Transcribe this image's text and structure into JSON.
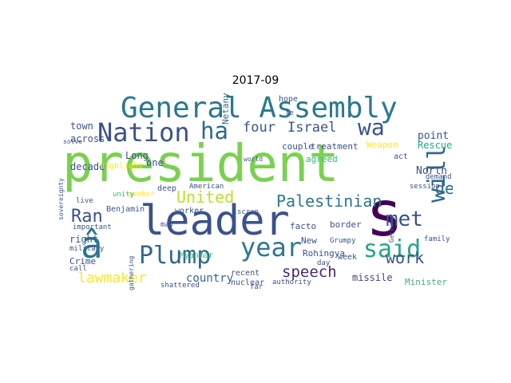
{
  "figure": {
    "title": "2017-09"
  },
  "words": [
    {
      "text": "president",
      "color": "#7ad151"
    },
    {
      "text": "leader",
      "color": "#3b528b"
    },
    {
      "text": "s",
      "color": "#440154"
    },
    {
      "text": "General Assembly",
      "color": "#2a788e"
    },
    {
      "text": "Nation",
      "color": "#3b528b"
    },
    {
      "text": "ha",
      "color": "#31688e"
    },
    {
      "text": "year",
      "color": "#2a788e"
    },
    {
      "text": "said",
      "color": "#22a884"
    },
    {
      "text": "Plump",
      "color": "#31688e"
    },
    {
      "text": "â",
      "color": "#2a788e"
    },
    {
      "text": "will",
      "color": "#31688e"
    },
    {
      "text": "met",
      "color": "#3b528b"
    },
    {
      "text": "wa",
      "color": "#3b528b"
    },
    {
      "text": "Ran",
      "color": "#3b528b"
    },
    {
      "text": "Palestinian",
      "color": "#2a788e"
    },
    {
      "text": "United",
      "color": "#bddf26"
    },
    {
      "text": "four",
      "color": "#3b528b"
    },
    {
      "text": "Israel",
      "color": "#3b528b"
    },
    {
      "text": "speech",
      "color": "#482878"
    },
    {
      "text": "work",
      "color": "#3b528b"
    },
    {
      "text": "lawmaker",
      "color": "#fde725"
    },
    {
      "text": "de",
      "color": "#31688e"
    },
    {
      "text": "country",
      "color": "#31688e"
    },
    {
      "text": "missile",
      "color": "#414487"
    },
    {
      "text": "Minister",
      "color": "#35b779"
    },
    {
      "text": "North",
      "color": "#3b528b"
    },
    {
      "text": "Rescue",
      "color": "#22a884"
    },
    {
      "text": "point",
      "color": "#3b528b"
    },
    {
      "text": "treatment",
      "color": "#3b528b"
    },
    {
      "text": "couple",
      "color": "#3b528b"
    },
    {
      "text": "Weapon",
      "color": "#fde725"
    },
    {
      "text": "town",
      "color": "#3b528b"
    },
    {
      "text": "across",
      "color": "#3b528b"
    },
    {
      "text": "decade",
      "color": "#3b528b"
    },
    {
      "text": "Long",
      "color": "#3b528b"
    },
    {
      "text": "one",
      "color": "#3b528b"
    },
    {
      "text": "right",
      "color": "#3b528b"
    },
    {
      "text": "Crime",
      "color": "#3b528b"
    },
    {
      "text": "Benjamin",
      "color": "#3b528b"
    },
    {
      "text": "Netanyahu",
      "color": "#31688e"
    },
    {
      "text": "New",
      "color": "#3b528b"
    },
    {
      "text": "Rohingya",
      "color": "#3b528b"
    },
    {
      "text": "facto",
      "color": "#3b528b"
    },
    {
      "text": "Myanmar",
      "color": "#35b779"
    },
    {
      "text": "recent",
      "color": "#3b528b"
    },
    {
      "text": "nuclear",
      "color": "#3b528b"
    },
    {
      "text": "border",
      "color": "#3b528b"
    },
    {
      "text": "week",
      "color": "#3b528b"
    },
    {
      "text": "agreed",
      "color": "#35b779"
    },
    {
      "text": "hope",
      "color": "#3b528b"
    },
    {
      "text": "act",
      "color": "#3b528b"
    },
    {
      "text": "worker",
      "color": "#3b528b"
    },
    {
      "text": "deep",
      "color": "#3b528b"
    },
    {
      "text": "American",
      "color": "#3b528b"
    },
    {
      "text": "military",
      "color": "#3b528b"
    },
    {
      "text": "important",
      "color": "#3b528b"
    },
    {
      "text": "live",
      "color": "#3b528b"
    },
    {
      "text": "call",
      "color": "#3b528b"
    },
    {
      "text": "shattered",
      "color": "#3b528b"
    },
    {
      "text": "authority",
      "color": "#3b528b"
    },
    {
      "text": "far",
      "color": "#3b528b"
    },
    {
      "text": "Grumpy",
      "color": "#3b528b"
    },
    {
      "text": "scrap",
      "color": "#3b528b"
    },
    {
      "text": "demand",
      "color": "#3b528b"
    },
    {
      "text": "session",
      "color": "#3b528b"
    },
    {
      "text": "family",
      "color": "#3b528b"
    },
    {
      "text": "Germany",
      "color": "#3b528b"
    },
    {
      "text": "le",
      "color": "#3b528b"
    },
    {
      "text": "may",
      "color": "#3b528b"
    },
    {
      "text": "member",
      "color": "#fde725"
    },
    {
      "text": "unity",
      "color": "#35b779"
    },
    {
      "text": "sovereignty",
      "color": "#3b528b"
    },
    {
      "text": "world",
      "color": "#3b528b"
    },
    {
      "text": "day",
      "color": "#3b528b"
    },
    {
      "text": "gathering",
      "color": "#3b528b"
    },
    {
      "text": "highlight",
      "color": "#fde725"
    },
    {
      "text": "solve",
      "color": "#3b528b"
    }
  ]
}
